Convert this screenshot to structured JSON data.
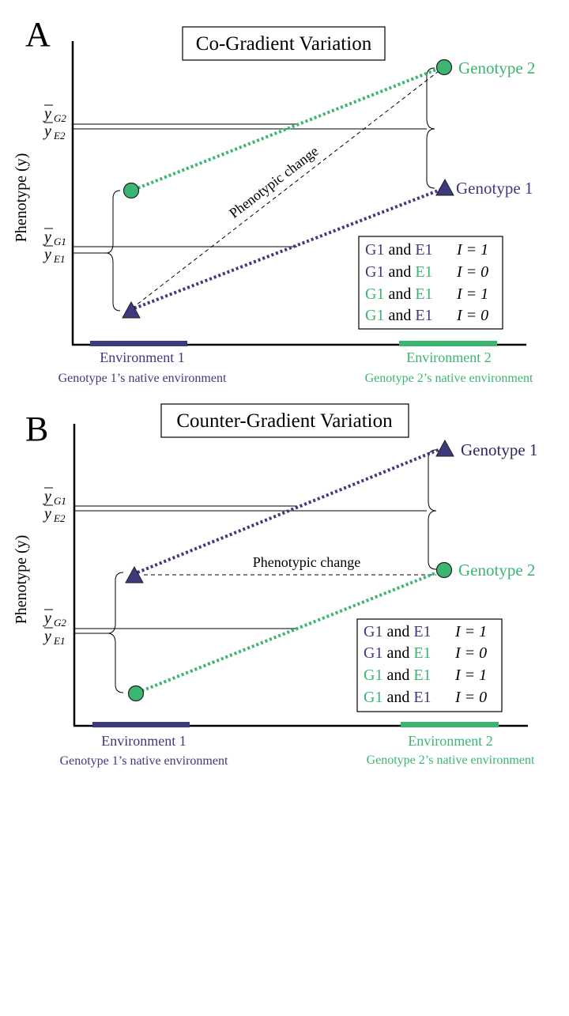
{
  "colors": {
    "genotype1": "#3d3a7e",
    "genotype2": "#3cb571",
    "axis": "#000000"
  },
  "panel_a": {
    "letter": "A",
    "title": "Co-Gradient Variation",
    "y_axis_label": "Phenotype (y)",
    "mean_labels": {
      "g2": "G2",
      "e2": "E2",
      "g1": "G1",
      "e1": "E1"
    },
    "phenotypic_change": "Phenotypic change",
    "genotype1_label": "Genotype 1",
    "genotype2_label": "Genotype 2",
    "environment1": {
      "label": "Environment 1",
      "sublabel": "Genotype 1’s native environment"
    },
    "environment2": {
      "label": "Environment 2",
      "sublabel": "Genotype 2’s native environment"
    },
    "legend": [
      {
        "g": "G1",
        "g_color": "genotype1",
        "e": "E1",
        "e_color": "genotype1",
        "i_text": "I = 1"
      },
      {
        "g": "G1",
        "g_color": "genotype1",
        "e": "E1",
        "e_color": "genotype2",
        "i_text": "I = 0"
      },
      {
        "g": "G1",
        "g_color": "genotype2",
        "e": "E1",
        "e_color": "genotype2",
        "i_text": "I = 1"
      },
      {
        "g": "G1",
        "g_color": "genotype2",
        "e": "E1",
        "e_color": "genotype1",
        "i_text": "I = 0"
      }
    ],
    "and_word": "and"
  },
  "panel_b": {
    "letter": "B",
    "title": "Counter-Gradient Variation",
    "y_axis_label": "Phenotype (y)",
    "mean_labels": {
      "g1": "G1",
      "e2": "E2",
      "g2": "G2",
      "e1": "E1"
    },
    "phenotypic_change": "Phenotypic change",
    "genotype1_label": "Genotype 1",
    "genotype2_label": "Genotype 2",
    "environment1": {
      "label": "Environment 1",
      "sublabel": "Genotype 1’s native environment"
    },
    "environment2": {
      "label": "Environment 2",
      "sublabel": "Genotype 2’s native environment"
    },
    "legend": [
      {
        "g": "G1",
        "g_color": "genotype1",
        "e": "E1",
        "e_color": "genotype1",
        "i_text": "I = 1"
      },
      {
        "g": "G1",
        "g_color": "genotype1",
        "e": "E1",
        "e_color": "genotype2",
        "i_text": "I = 0"
      },
      {
        "g": "G1",
        "g_color": "genotype2",
        "e": "E1",
        "e_color": "genotype2",
        "i_text": "I = 1"
      },
      {
        "g": "G1",
        "g_color": "genotype2",
        "e": "E1",
        "e_color": "genotype1",
        "i_text": "I = 0"
      }
    ],
    "and_word": "and"
  }
}
